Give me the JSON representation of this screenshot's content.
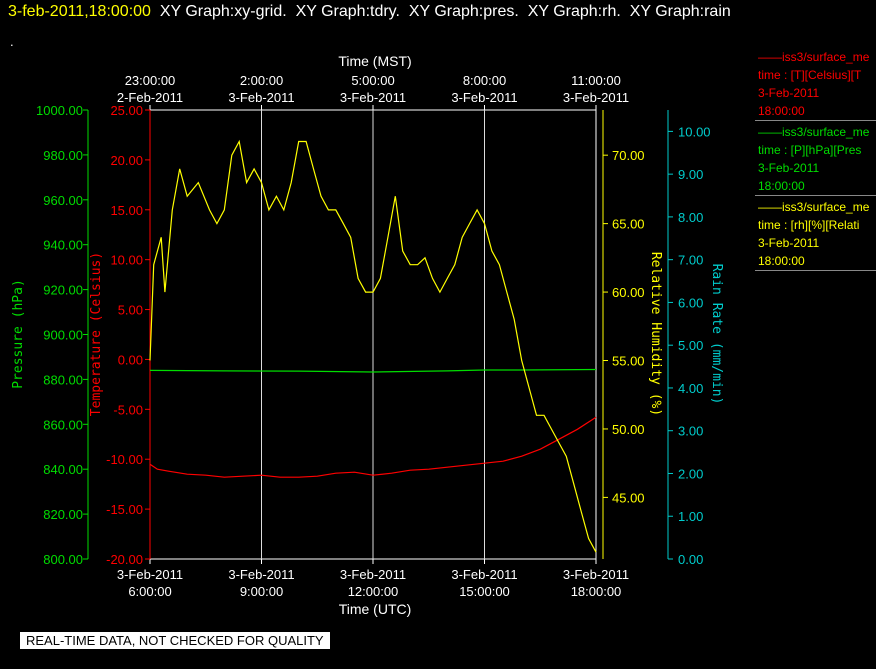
{
  "header": {
    "timestamp": "3-feb-2011,18:00:00",
    "titles": [
      "XY Graph:xy-grid.",
      "XY Graph:tdry.",
      "XY Graph:pres.",
      "XY Graph:rh.",
      "XY Graph:rain"
    ],
    "dot": "."
  },
  "legend": [
    {
      "line1": "iss3/surface_me",
      "line2": "time : [T][Celsius][T",
      "line3": "3-Feb-2011",
      "line4": "18:00:00",
      "color": "#ff0000"
    },
    {
      "line1": "iss3/surface_me",
      "line2": "time : [P][hPa][Pres",
      "line3": "3-Feb-2011",
      "line4": "18:00:00",
      "color": "#00dd00"
    },
    {
      "line1": "iss3/surface_me",
      "line2": "time : [rh][%][Relati",
      "line3": "3-Feb-2011",
      "line4": "18:00:00",
      "color": "#ffff00"
    }
  ],
  "footer_note": "REAL-TIME DATA, NOT CHECKED FOR QUALITY",
  "chart_data": {
    "type": "line",
    "x_top_label": "Time (MST)",
    "x_bottom_label": "Time (UTC)",
    "x_range_hours": [
      6.0,
      18.0
    ],
    "x_bottom_ticks": [
      {
        "h": 6,
        "date": "3-Feb-2011",
        "time": "6:00:00"
      },
      {
        "h": 9,
        "date": "3-Feb-2011",
        "time": "9:00:00"
      },
      {
        "h": 12,
        "date": "3-Feb-2011",
        "time": "12:00:00"
      },
      {
        "h": 15,
        "date": "3-Feb-2011",
        "time": "15:00:00"
      },
      {
        "h": 18,
        "date": "3-Feb-2011",
        "time": "18:00:00"
      }
    ],
    "x_top_ticks": [
      {
        "h": 6,
        "time": "23:00:00",
        "date": "2-Feb-2011"
      },
      {
        "h": 9,
        "time": "2:00:00",
        "date": "3-Feb-2011"
      },
      {
        "h": 12,
        "time": "5:00:00",
        "date": "3-Feb-2011"
      },
      {
        "h": 15,
        "time": "8:00:00",
        "date": "3-Feb-2011"
      },
      {
        "h": 18,
        "time": "11:00:00",
        "date": "3-Feb-2011"
      }
    ],
    "axes": {
      "pressure": {
        "label": "Pressure (hPa)",
        "range": [
          800,
          1000
        ],
        "ticks": [
          "800.00",
          "820.00",
          "840.00",
          "860.00",
          "880.00",
          "900.00",
          "920.00",
          "940.00",
          "960.00",
          "980.00",
          "1000.00"
        ],
        "color": "#00dd00"
      },
      "temperature": {
        "label": "Temperature (Celsius)",
        "range": [
          -20,
          25
        ],
        "ticks": [
          "-20.00",
          "-15.00",
          "-10.00",
          "-5.00",
          "0.00",
          "5.00",
          "10.00",
          "15.00",
          "20.00",
          "25.00"
        ],
        "color": "#ff0000"
      },
      "rh": {
        "label": "Relative Humidity (%)",
        "range": [
          40.5,
          73.3
        ],
        "ticks": [
          "45.00",
          "50.00",
          "55.00",
          "60.00",
          "65.00",
          "70.00"
        ],
        "color": "#ffff00"
      },
      "rain": {
        "label": "Rain Rate (mm/min)",
        "range": [
          0,
          10.5
        ],
        "ticks": [
          "0.00",
          "1.00",
          "2.00",
          "3.00",
          "4.00",
          "5.00",
          "6.00",
          "7.00",
          "8.00",
          "9.00",
          "10.00"
        ],
        "color": "#00cccc"
      }
    },
    "series": [
      {
        "name": "T",
        "axis": "temperature",
        "color": "#ff0000",
        "x": [
          6.0,
          6.2,
          6.5,
          7.0,
          7.5,
          8.0,
          8.5,
          9.0,
          9.5,
          10.0,
          10.5,
          11.0,
          11.5,
          12.0,
          12.5,
          13.0,
          13.5,
          14.0,
          14.5,
          15.0,
          15.5,
          16.0,
          16.5,
          17.0,
          17.5,
          18.0
        ],
        "y": [
          -10.5,
          -11.0,
          -11.2,
          -11.5,
          -11.6,
          -11.8,
          -11.7,
          -11.6,
          -11.8,
          -11.8,
          -11.7,
          -11.4,
          -11.3,
          -11.6,
          -11.4,
          -11.1,
          -11.0,
          -10.8,
          -10.6,
          -10.4,
          -10.2,
          -9.7,
          -9.0,
          -8.0,
          -7.0,
          -5.8
        ]
      },
      {
        "name": "P",
        "axis": "pressure",
        "color": "#00dd00",
        "x": [
          6.0,
          8.0,
          10.0,
          12.0,
          14.0,
          15.0,
          16.0,
          18.0
        ],
        "y": [
          884.0,
          883.8,
          883.7,
          883.3,
          883.8,
          884.2,
          884.2,
          884.4
        ]
      },
      {
        "name": "rh",
        "axis": "rh",
        "color": "#ffff00",
        "x": [
          6.0,
          6.1,
          6.3,
          6.4,
          6.6,
          6.8,
          7.0,
          7.3,
          7.6,
          7.8,
          8.0,
          8.2,
          8.4,
          8.6,
          8.8,
          9.0,
          9.2,
          9.4,
          9.6,
          9.8,
          10.0,
          10.2,
          10.4,
          10.6,
          10.8,
          11.0,
          11.2,
          11.4,
          11.6,
          11.8,
          12.0,
          12.2,
          12.4,
          12.6,
          12.8,
          13.0,
          13.2,
          13.4,
          13.6,
          13.8,
          14.0,
          14.2,
          14.4,
          14.6,
          14.8,
          15.0,
          15.2,
          15.4,
          15.6,
          15.8,
          16.0,
          16.2,
          16.4,
          16.6,
          16.8,
          17.0,
          17.2,
          17.4,
          17.6,
          17.8,
          18.0
        ],
        "y": [
          55,
          62,
          64,
          60,
          66,
          69,
          67,
          68,
          66,
          65,
          66,
          70,
          71,
          68,
          69,
          68,
          66,
          67,
          66,
          68,
          71,
          71,
          69,
          67,
          66,
          66,
          65,
          64,
          61,
          60,
          60,
          61,
          64,
          67,
          63,
          62,
          62,
          62.5,
          61,
          60,
          61,
          62,
          64,
          65,
          66,
          65,
          63,
          62,
          60,
          58,
          55,
          53,
          51,
          51,
          50,
          49,
          48,
          46,
          44,
          42,
          41
        ]
      }
    ],
    "grid": "vertical at major x ticks",
    "legend_placement": "right"
  }
}
